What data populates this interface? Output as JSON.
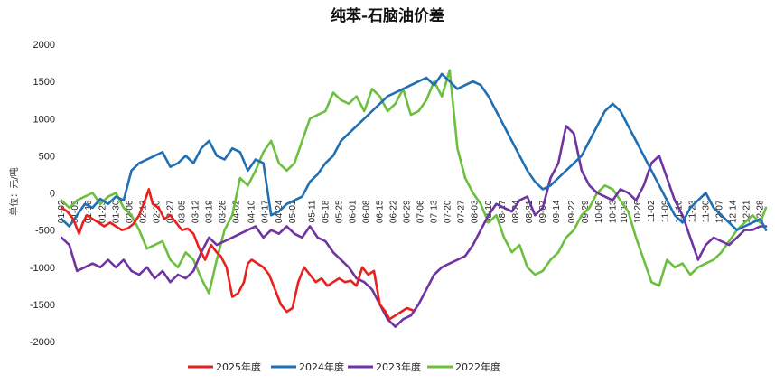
{
  "chart_data": {
    "type": "line",
    "title": "纯苯-石脑油价差",
    "ylabel": "单位：元/吨",
    "xlabel": "",
    "ylim": [
      -2000,
      2000
    ],
    "yticks": [
      2000,
      1500,
      1000,
      500,
      0,
      -500,
      -1000,
      -1500,
      -2000
    ],
    "xlim": [
      1,
      365
    ],
    "x_tick_labels": [
      "01-02",
      "01-09",
      "01-16",
      "01-23",
      "01-30",
      "02-06",
      "02-13",
      "02-20",
      "02-27",
      "03-05",
      "03-12",
      "03-19",
      "03-26",
      "04-02",
      "04-10",
      "04-17",
      "04-24",
      "05-01",
      "05-11",
      "05-18",
      "05-25",
      "06-01",
      "06-08",
      "06-15",
      "06-22",
      "06-29",
      "07-06",
      "07-13",
      "07-20",
      "07-27",
      "08-03",
      "08-10",
      "08-17",
      "08-24",
      "08-31",
      "09-07",
      "09-14",
      "09-22",
      "09-29",
      "10-06",
      "10-13",
      "10-19",
      "10-26",
      "11-02",
      "11-09",
      "11-16",
      "11-23",
      "11-30",
      "12-07",
      "12-14",
      "12-21",
      "12-28"
    ],
    "x_tick_days": [
      2,
      9,
      16,
      23,
      30,
      37,
      44,
      51,
      58,
      64,
      71,
      78,
      85,
      92,
      100,
      107,
      114,
      121,
      131,
      138,
      145,
      152,
      159,
      166,
      173,
      180,
      187,
      194,
      201,
      208,
      215,
      222,
      229,
      236,
      243,
      250,
      257,
      265,
      272,
      279,
      286,
      292,
      299,
      306,
      313,
      320,
      327,
      334,
      341,
      348,
      355,
      362
    ],
    "legend_position": "bottom",
    "grid": false,
    "series": [
      {
        "name": "2025年度",
        "color": "#e8201e",
        "x": [
          2,
          5,
          8,
          11,
          13,
          15,
          18,
          21,
          24,
          27,
          30,
          33,
          36,
          39,
          42,
          45,
          47,
          49,
          52,
          55,
          58,
          61,
          64,
          67,
          70,
          73,
          76,
          79,
          82,
          84,
          87,
          90,
          93,
          96,
          98,
          100,
          103,
          106,
          109,
          112,
          115,
          118,
          121,
          124,
          127,
          130,
          133,
          136,
          139,
          142,
          145,
          148,
          151,
          154,
          157,
          160,
          163,
          166,
          169,
          171,
          174,
          177,
          180,
          183
        ],
        "y": [
          -200,
          -250,
          -350,
          -550,
          -400,
          -300,
          -350,
          -400,
          -450,
          -400,
          -450,
          -500,
          -480,
          -420,
          -300,
          -100,
          50,
          -150,
          -200,
          -350,
          -300,
          -400,
          -500,
          -480,
          -550,
          -750,
          -900,
          -700,
          -800,
          -850,
          -1000,
          -1400,
          -1350,
          -1200,
          -950,
          -900,
          -950,
          -1000,
          -1100,
          -1300,
          -1500,
          -1600,
          -1550,
          -1200,
          -1000,
          -1100,
          -1200,
          -1150,
          -1250,
          -1200,
          -1150,
          -1200,
          -1180,
          -1250,
          -1000,
          -1100,
          -1050,
          -1500,
          -1600,
          -1700,
          -1650,
          -1600,
          -1550,
          -1580
        ]
      },
      {
        "name": "2024年度",
        "color": "#1f6fb5",
        "x": [
          2,
          6,
          10,
          14,
          18,
          22,
          26,
          30,
          34,
          38,
          42,
          46,
          50,
          54,
          58,
          62,
          66,
          70,
          74,
          78,
          82,
          86,
          90,
          94,
          98,
          102,
          106,
          110,
          114,
          118,
          122,
          126,
          130,
          134,
          138,
          142,
          146,
          150,
          154,
          158,
          162,
          166,
          170,
          174,
          178,
          182,
          186,
          190,
          194,
          198,
          202,
          206,
          210,
          214,
          218,
          222,
          226,
          230,
          234,
          238,
          242,
          246,
          250,
          254,
          258,
          262,
          266,
          270,
          274,
          278,
          282,
          286,
          290,
          294,
          298,
          302,
          306,
          310,
          314,
          318,
          322,
          326,
          330,
          334,
          338,
          342,
          346,
          350,
          354,
          358,
          362,
          365
        ],
        "y": [
          -350,
          -450,
          -300,
          -150,
          -200,
          -80,
          -150,
          -50,
          -100,
          300,
          400,
          450,
          500,
          550,
          350,
          400,
          500,
          400,
          600,
          700,
          500,
          450,
          600,
          550,
          300,
          450,
          400,
          -300,
          -250,
          -150,
          -100,
          -50,
          150,
          250,
          400,
          500,
          700,
          800,
          900,
          1000,
          1100,
          1200,
          1300,
          1350,
          1400,
          1450,
          1500,
          1550,
          1450,
          1600,
          1500,
          1400,
          1450,
          1500,
          1450,
          1300,
          1100,
          900,
          700,
          500,
          300,
          150,
          50,
          100,
          200,
          300,
          400,
          500,
          700,
          900,
          1100,
          1200,
          1100,
          900,
          700,
          500,
          300,
          100,
          -100,
          -300,
          -400,
          -200,
          -100,
          0,
          -200,
          -300,
          -400,
          -500,
          -450,
          -400,
          -350,
          -500
        ]
      },
      {
        "name": "2023年度",
        "color": "#7034a0",
        "x": [
          2,
          6,
          10,
          14,
          18,
          22,
          26,
          30,
          34,
          38,
          42,
          46,
          50,
          54,
          58,
          62,
          66,
          70,
          74,
          78,
          82,
          86,
          90,
          94,
          98,
          102,
          106,
          110,
          114,
          118,
          122,
          126,
          130,
          134,
          138,
          142,
          146,
          150,
          154,
          158,
          162,
          166,
          170,
          174,
          178,
          182,
          186,
          190,
          194,
          198,
          202,
          206,
          210,
          214,
          218,
          222,
          226,
          230,
          234,
          238,
          242,
          246,
          250,
          254,
          258,
          262,
          266,
          270,
          274,
          278,
          282,
          286,
          290,
          294,
          298,
          302,
          306,
          310,
          314,
          318,
          322,
          326,
          330,
          334,
          338,
          342,
          346,
          350,
          354,
          358,
          362,
          365
        ],
        "y": [
          -600,
          -700,
          -1050,
          -1000,
          -950,
          -1000,
          -900,
          -1000,
          -900,
          -1050,
          -1100,
          -1000,
          -1150,
          -1050,
          -1200,
          -1100,
          -1150,
          -1050,
          -800,
          -600,
          -700,
          -650,
          -600,
          -550,
          -500,
          -450,
          -600,
          -500,
          -550,
          -450,
          -550,
          -600,
          -450,
          -600,
          -650,
          -800,
          -900,
          -1000,
          -1150,
          -1200,
          -1300,
          -1500,
          -1700,
          -1800,
          -1700,
          -1650,
          -1500,
          -1300,
          -1100,
          -1000,
          -950,
          -900,
          -850,
          -700,
          -500,
          -300,
          -150,
          -200,
          -250,
          -100,
          -50,
          -300,
          -200,
          200,
          400,
          900,
          800,
          300,
          100,
          0,
          -50,
          -100,
          50,
          0,
          -100,
          100,
          400,
          500,
          200,
          -100,
          -300,
          -600,
          -900,
          -700,
          -600,
          -650,
          -700,
          -600,
          -500,
          -500,
          -450,
          -450
        ]
      },
      {
        "name": "2022年度",
        "color": "#6cbf3f",
        "x": [
          2,
          6,
          10,
          14,
          18,
          22,
          26,
          30,
          34,
          38,
          42,
          46,
          50,
          54,
          58,
          62,
          66,
          70,
          74,
          78,
          82,
          86,
          90,
          94,
          98,
          102,
          106,
          110,
          114,
          118,
          122,
          126,
          130,
          134,
          138,
          142,
          146,
          150,
          154,
          158,
          162,
          166,
          170,
          174,
          178,
          182,
          186,
          190,
          194,
          198,
          202,
          206,
          210,
          214,
          218,
          222,
          226,
          230,
          234,
          238,
          242,
          246,
          250,
          254,
          258,
          262,
          266,
          270,
          274,
          278,
          282,
          286,
          290,
          294,
          298,
          302,
          306,
          310,
          314,
          318,
          322,
          326,
          330,
          334,
          338,
          342,
          346,
          350,
          354,
          358,
          362,
          365
        ],
        "y": [
          -100,
          -200,
          -100,
          -50,
          0,
          -150,
          -50,
          0,
          -200,
          -300,
          -500,
          -750,
          -700,
          -650,
          -900,
          -1000,
          -800,
          -900,
          -1150,
          -1350,
          -900,
          -500,
          -300,
          200,
          100,
          300,
          550,
          700,
          400,
          300,
          400,
          700,
          1000,
          1050,
          1100,
          1350,
          1250,
          1200,
          1300,
          1100,
          1400,
          1300,
          1100,
          1200,
          1400,
          1050,
          1100,
          1250,
          1500,
          1300,
          1650,
          600,
          200,
          0,
          -150,
          -400,
          -300,
          -600,
          -800,
          -700,
          -1000,
          -1100,
          -1050,
          -900,
          -800,
          -600,
          -500,
          -300,
          -200,
          0,
          100,
          50,
          -100,
          -250,
          -600,
          -900,
          -1200,
          -1250,
          -900,
          -1000,
          -950,
          -1100,
          -1000,
          -950,
          -900,
          -800,
          -650,
          -500,
          -400,
          -300,
          -400,
          -200
        ]
      }
    ]
  }
}
